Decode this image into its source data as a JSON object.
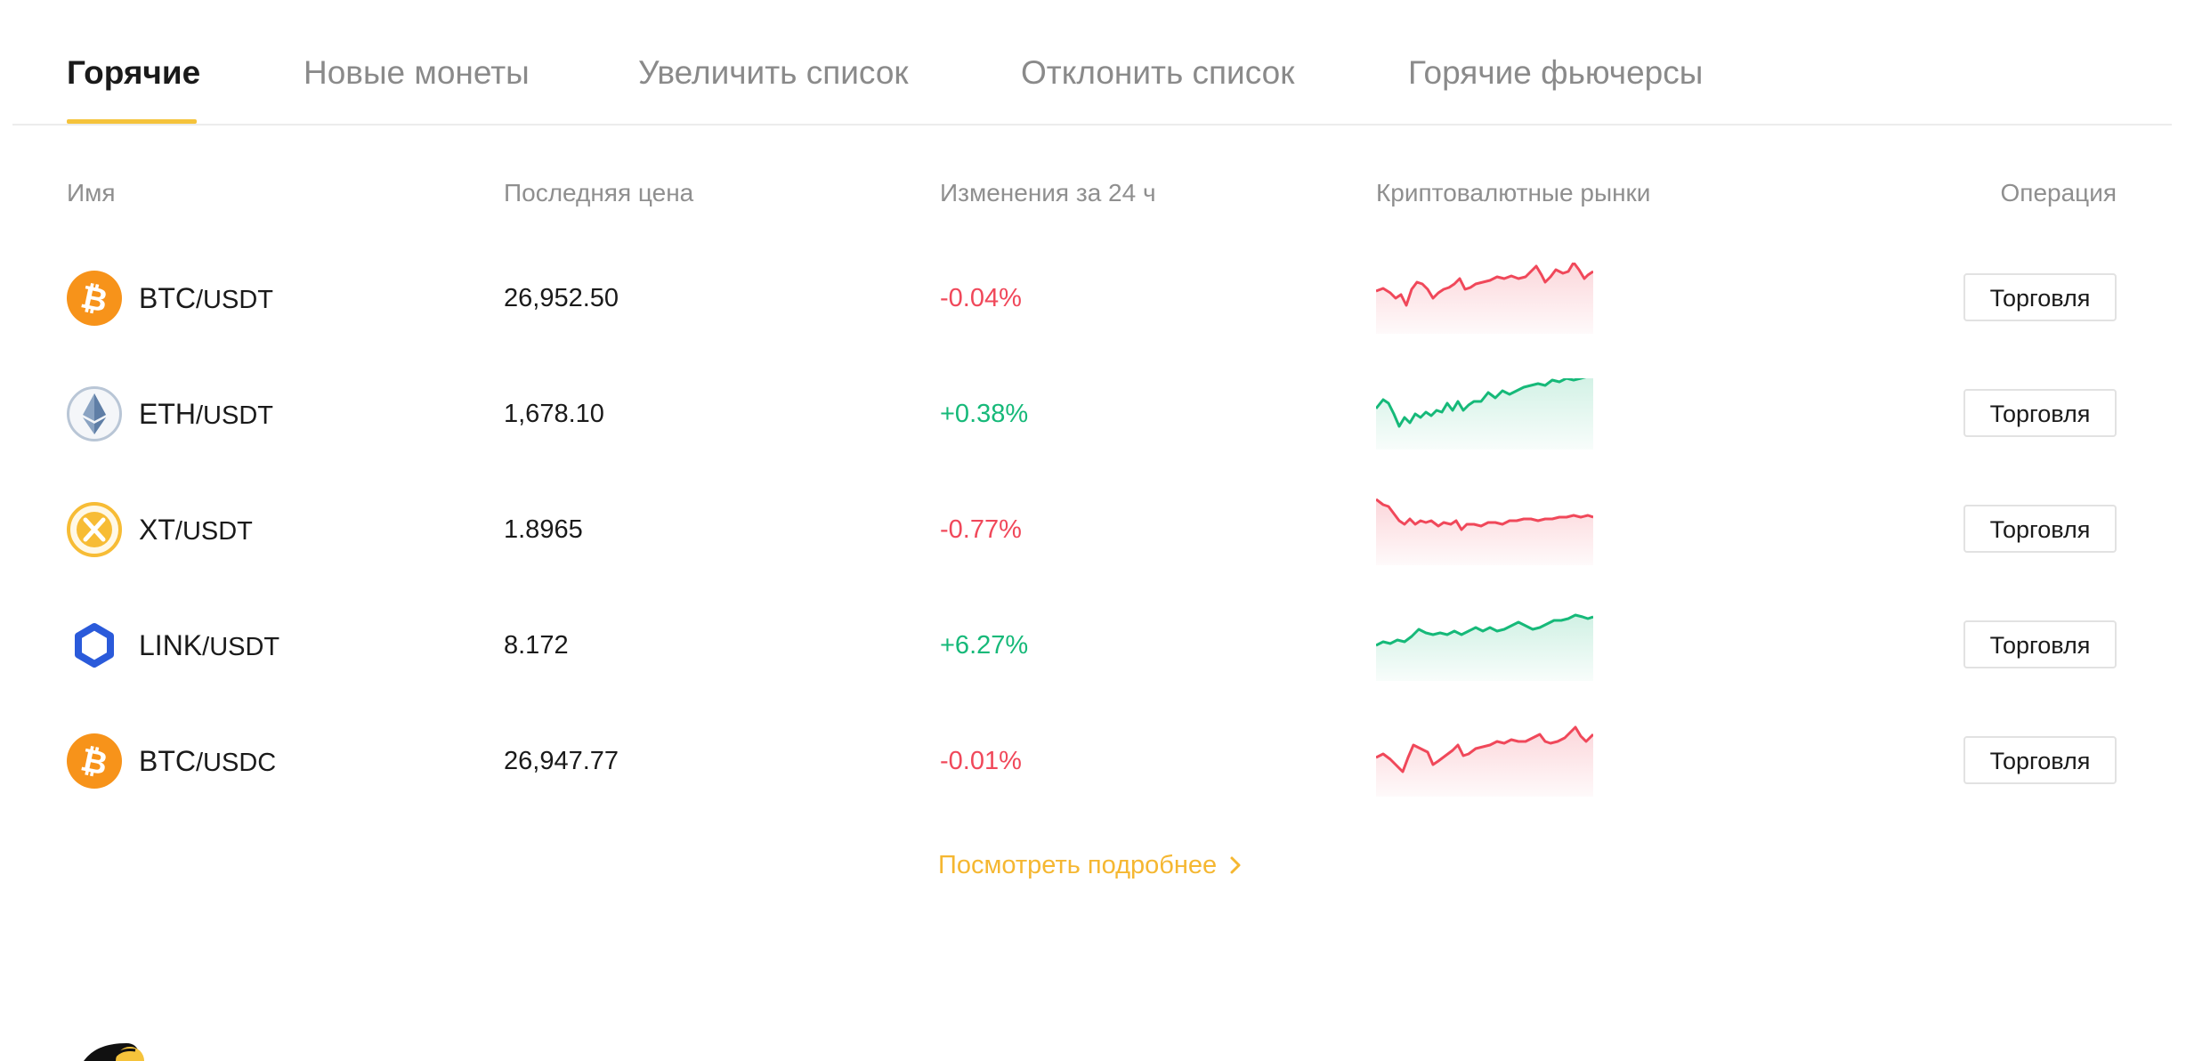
{
  "tabs": [
    {
      "label": "Горячие",
      "active": true
    },
    {
      "label": "Новые монеты",
      "active": false
    },
    {
      "label": "Увеличить список",
      "active": false
    },
    {
      "label": "Отклонить список",
      "active": false
    },
    {
      "label": "Горячие фьючерсы",
      "active": false
    }
  ],
  "columns": {
    "name": "Имя",
    "price": "Последняя цена",
    "change": "Изменения за 24 ч",
    "markets": "Криптовалютные рынки",
    "operation": "Операция"
  },
  "rows": [
    {
      "base": "BTC",
      "quote": "/USDT",
      "price": "26,952.50",
      "change": "-0.04%",
      "direction": "down",
      "icon": "bitcoin-icon",
      "trade": "Торговля"
    },
    {
      "base": "ETH",
      "quote": "/USDT",
      "price": "1,678.10",
      "change": "+0.38%",
      "direction": "up",
      "icon": "ethereum-icon",
      "trade": "Торговля"
    },
    {
      "base": "XT",
      "quote": "/USDT",
      "price": "1.8965",
      "change": "-0.77%",
      "direction": "down",
      "icon": "xt-icon",
      "trade": "Торговля"
    },
    {
      "base": "LINK",
      "quote": "/USDT",
      "price": "8.172",
      "change": "+6.27%",
      "direction": "up",
      "icon": "chainlink-icon",
      "trade": "Торговля"
    },
    {
      "base": "BTC",
      "quote": "/USDC",
      "price": "26,947.77",
      "change": "-0.01%",
      "direction": "down",
      "icon": "bitcoin-icon",
      "trade": "Торговля"
    }
  ],
  "more_link": "Посмотреть подробнее",
  "colors": {
    "accent": "#f5c33b",
    "link": "#f5b731",
    "down": "#f0485a",
    "up": "#16b979",
    "bitcoin": "#f7931a"
  }
}
